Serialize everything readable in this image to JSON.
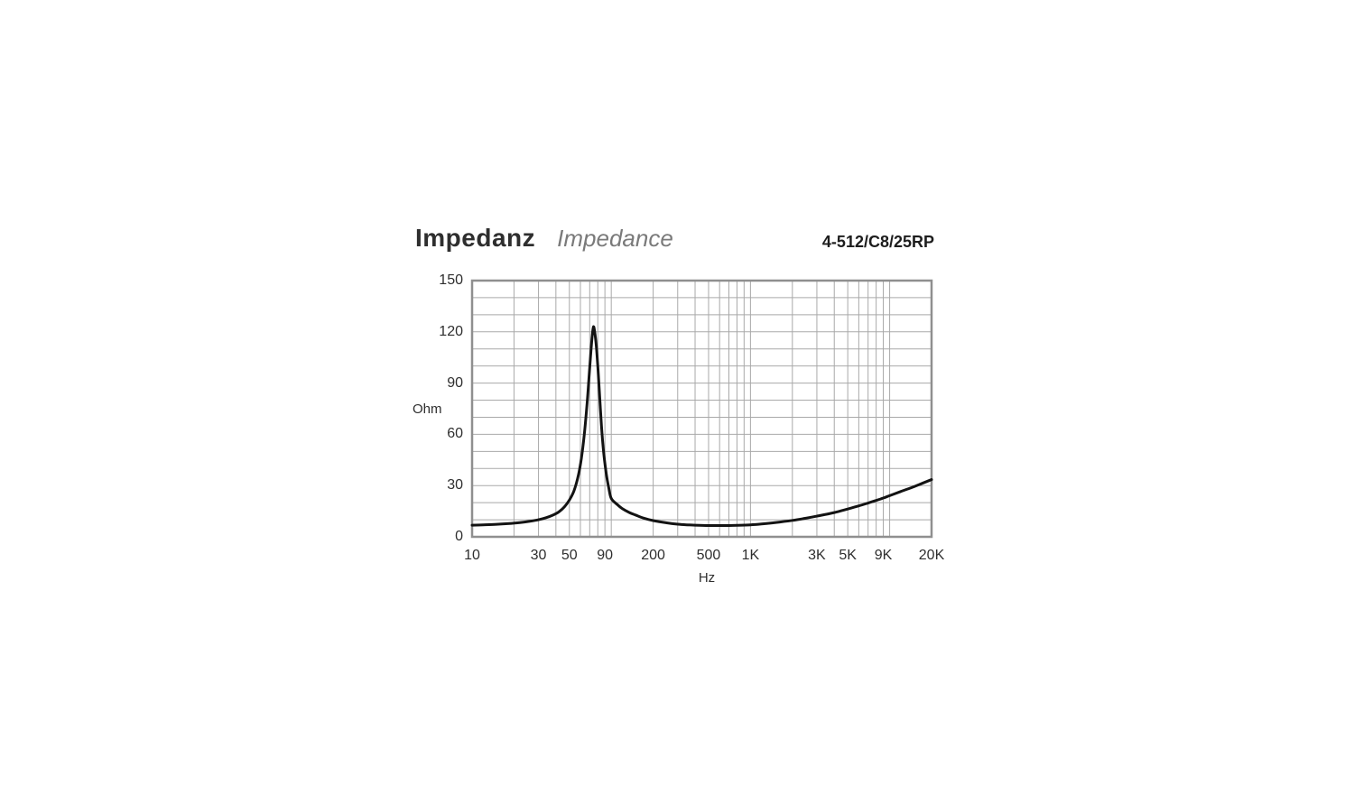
{
  "header": {
    "title_de": "Impedanz",
    "title_en": "Impedance",
    "model": "4-512/C8/25RP"
  },
  "chart_data": {
    "type": "line",
    "title": "Impedanz / Impedance",
    "xlabel": "Hz",
    "ylabel": "Ohm",
    "x_scale": "log",
    "xlim": [
      10,
      20000
    ],
    "ylim": [
      0,
      150
    ],
    "grid": "on",
    "legend": "none",
    "colors": {
      "grid_line": "#a9a9a9",
      "plot_border": "#8f8f8f",
      "curve": "#131313",
      "text": "#2e2e2e"
    },
    "y_grid_step": 10,
    "x_grid_multipliers_per_decade": [
      2,
      3,
      4,
      5,
      6,
      7,
      8,
      9,
      10
    ],
    "x_ticks": [
      {
        "value": 10,
        "label": "10"
      },
      {
        "value": 30,
        "label": "30"
      },
      {
        "value": 50,
        "label": "50"
      },
      {
        "value": 90,
        "label": "90"
      },
      {
        "value": 200,
        "label": "200"
      },
      {
        "value": 500,
        "label": "500"
      },
      {
        "value": 1000,
        "label": "1K"
      },
      {
        "value": 3000,
        "label": "3K"
      },
      {
        "value": 5000,
        "label": "5K"
      },
      {
        "value": 9000,
        "label": "9K"
      },
      {
        "value": 20000,
        "label": "20K"
      }
    ],
    "y_ticks": [
      {
        "value": 0,
        "label": "0"
      },
      {
        "value": 30,
        "label": "30"
      },
      {
        "value": 60,
        "label": "60"
      },
      {
        "value": 90,
        "label": "90"
      },
      {
        "value": 120,
        "label": "120"
      },
      {
        "value": 150,
        "label": "150"
      }
    ],
    "series": [
      {
        "name": "impedance-curve",
        "unit": "Ohm",
        "peak": {
          "frequency_hz": 74,
          "impedance_ohm": 123
        },
        "points": [
          [
            10,
            6.8
          ],
          [
            12,
            7.0
          ],
          [
            15,
            7.3
          ],
          [
            18,
            7.7
          ],
          [
            22,
            8.3
          ],
          [
            26,
            9.1
          ],
          [
            30,
            10.0
          ],
          [
            34,
            11.2
          ],
          [
            38,
            12.7
          ],
          [
            42,
            14.6
          ],
          [
            46,
            17.5
          ],
          [
            50,
            21.5
          ],
          [
            54,
            27
          ],
          [
            58,
            36
          ],
          [
            61,
            46
          ],
          [
            64,
            60
          ],
          [
            67,
            78
          ],
          [
            69,
            92
          ],
          [
            71,
            106
          ],
          [
            73,
            118
          ],
          [
            74.5,
            123
          ],
          [
            76,
            120
          ],
          [
            78,
            112
          ],
          [
            80,
            100
          ],
          [
            82,
            86
          ],
          [
            85,
            65
          ],
          [
            88,
            50
          ],
          [
            92,
            37
          ],
          [
            96,
            28.5
          ],
          [
            100,
            22.5
          ],
          [
            110,
            19
          ],
          [
            120,
            16.5
          ],
          [
            135,
            14.2
          ],
          [
            150,
            12.7
          ],
          [
            170,
            11.0
          ],
          [
            200,
            9.5
          ],
          [
            250,
            8.2
          ],
          [
            300,
            7.4
          ],
          [
            350,
            7.0
          ],
          [
            400,
            6.8
          ],
          [
            500,
            6.6
          ],
          [
            600,
            6.6
          ],
          [
            700,
            6.6
          ],
          [
            800,
            6.7
          ],
          [
            1000,
            7.0
          ],
          [
            1200,
            7.5
          ],
          [
            1500,
            8.3
          ],
          [
            2000,
            9.6
          ],
          [
            2500,
            10.9
          ],
          [
            3000,
            12.1
          ],
          [
            4000,
            14.2
          ],
          [
            5000,
            16.3
          ],
          [
            6000,
            18.1
          ],
          [
            7000,
            19.8
          ],
          [
            8000,
            21.3
          ],
          [
            9000,
            22.7
          ],
          [
            10000,
            24.1
          ],
          [
            12000,
            26.5
          ],
          [
            15000,
            29.4
          ],
          [
            17000,
            31.2
          ],
          [
            20000,
            33.5
          ]
        ]
      }
    ]
  }
}
